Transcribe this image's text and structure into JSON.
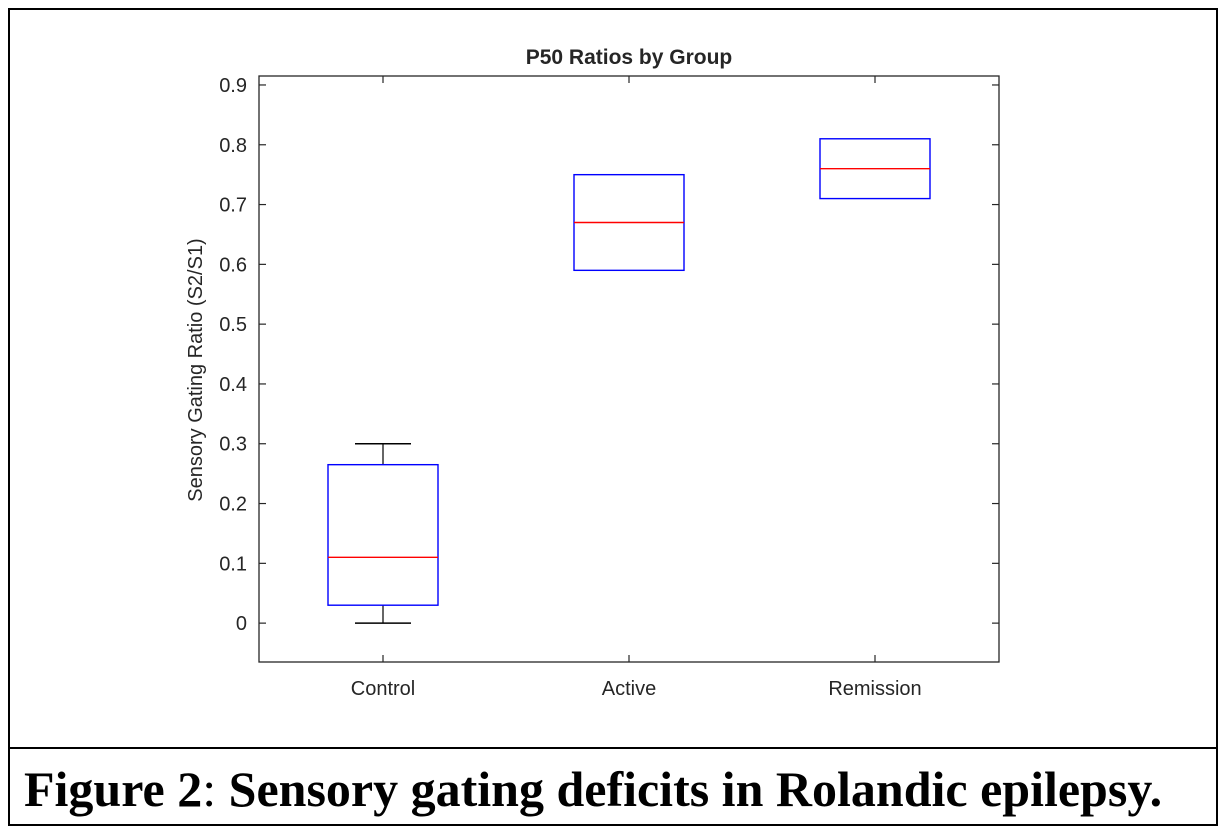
{
  "chart_data": {
    "type": "box",
    "title": "P50 Ratios by Group",
    "xlabel": "",
    "ylabel": "Sensory Gating Ratio (S2/S1)",
    "ylim": [
      -0.065,
      0.915
    ],
    "yticks": [
      0,
      0.1,
      0.2,
      0.3,
      0.4,
      0.5,
      0.6,
      0.7,
      0.8,
      0.9
    ],
    "ytick_labels": [
      "0",
      "0.1",
      "0.2",
      "0.3",
      "0.4",
      "0.5",
      "0.6",
      "0.7",
      "0.8",
      "0.9"
    ],
    "categories": [
      "Control",
      "Active",
      "Remission"
    ],
    "series": [
      {
        "name": "Control",
        "whisker_low": 0,
        "q1": 0.03,
        "median": 0.11,
        "q3": 0.265,
        "whisker_high": 0.3
      },
      {
        "name": "Active",
        "whisker_low": 0.59,
        "q1": 0.59,
        "median": 0.67,
        "q3": 0.75,
        "whisker_high": 0.75
      },
      {
        "name": "Remission",
        "whisker_low": 0.71,
        "q1": 0.71,
        "median": 0.76,
        "q3": 0.81,
        "whisker_high": 0.81
      }
    ],
    "colors": {
      "box": "#0000ff",
      "median": "#ff0000",
      "whisker": "#000000",
      "axis": "#262626"
    },
    "grid": false
  },
  "caption": {
    "label": "Figure 2",
    "separator": ":",
    "text": " Sensory gating deficits in Rolandic epilepsy."
  }
}
